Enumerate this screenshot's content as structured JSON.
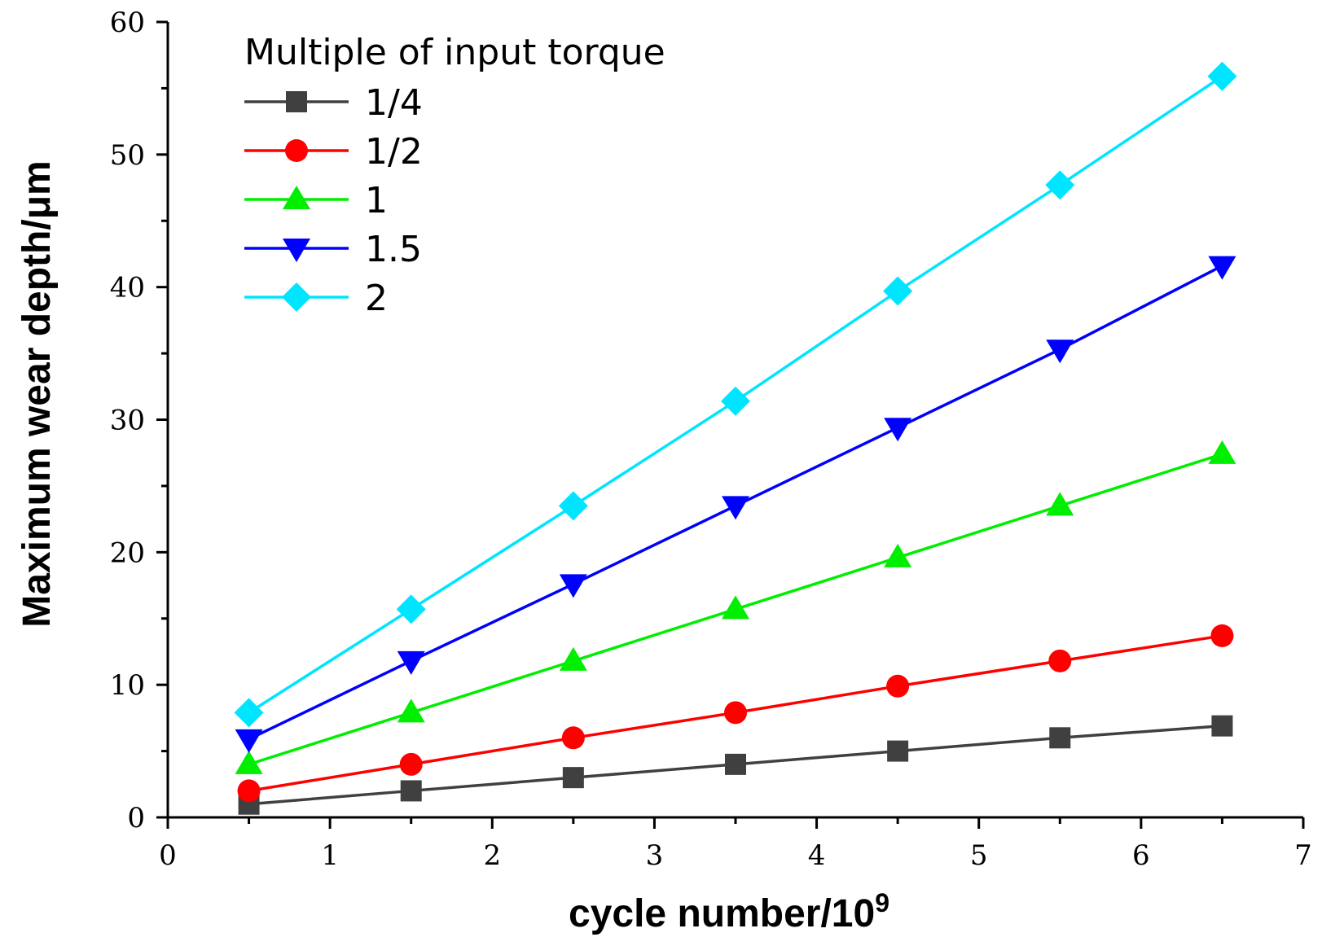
{
  "chart_data": {
    "type": "line",
    "title": "",
    "xlabel": "cycle number/10",
    "xlabel_superscript": "9",
    "ylabel": "Maximum wear depth/μm",
    "xlim": [
      0,
      7
    ],
    "ylim": [
      0,
      60
    ],
    "x_ticks": [
      "0",
      "1",
      "2",
      "3",
      "4",
      "5",
      "6",
      "7"
    ],
    "y_ticks": [
      "0",
      "10",
      "20",
      "30",
      "40",
      "50",
      "60"
    ],
    "grid": false,
    "legend": {
      "title": "Multiple of input torque",
      "position": "top-left"
    },
    "x": [
      0.5,
      1.5,
      2.5,
      3.5,
      4.5,
      5.5,
      6.5
    ],
    "series": [
      {
        "name": "1/4",
        "color": "#404040",
        "marker": "square",
        "values": [
          1.0,
          2.0,
          3.0,
          4.0,
          5.0,
          6.0,
          6.9
        ]
      },
      {
        "name": "1/2",
        "color": "#ff0000",
        "marker": "circle",
        "values": [
          2.0,
          4.0,
          6.0,
          7.9,
          9.9,
          11.8,
          13.7
        ]
      },
      {
        "name": "1",
        "color": "#00ee00",
        "marker": "triangle-up",
        "values": [
          4.0,
          7.9,
          11.8,
          15.7,
          19.6,
          23.5,
          27.4
        ]
      },
      {
        "name": "1.5",
        "color": "#0000ff",
        "marker": "triangle-down",
        "values": [
          5.9,
          11.8,
          17.6,
          23.5,
          29.4,
          35.3,
          41.6
        ]
      },
      {
        "name": "2",
        "color": "#00e5ff",
        "marker": "diamond",
        "values": [
          7.9,
          15.7,
          23.5,
          31.4,
          39.7,
          47.7,
          55.9
        ]
      }
    ]
  }
}
